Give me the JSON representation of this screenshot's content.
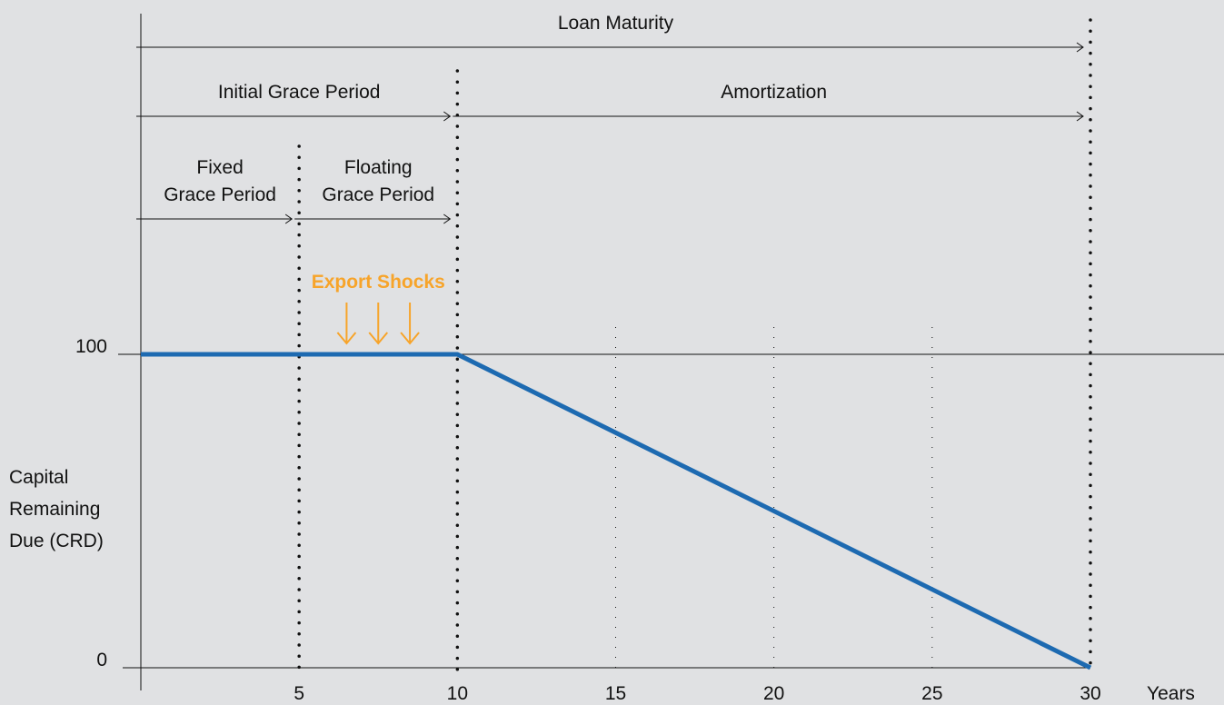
{
  "chart_data": {
    "type": "line",
    "x": [
      0,
      10,
      30
    ],
    "series": [
      {
        "name": "Capital Remaining Due",
        "color": "#1d6ab1",
        "values": [
          100,
          100,
          0
        ]
      }
    ],
    "xlim": [
      0,
      30
    ],
    "ylim": [
      0,
      100
    ],
    "xticks": [
      5,
      10,
      15,
      20,
      25,
      30
    ],
    "yticks": [
      0,
      100
    ],
    "xlabel": "Years",
    "ylabel": [
      "Capital",
      "Remaining",
      "Due (CRD)"
    ],
    "dividers": [
      5,
      10,
      30
    ],
    "spans": [
      {
        "start": 0,
        "end": 30,
        "label": [
          "Loan Maturity"
        ]
      },
      {
        "start": 0,
        "end": 10,
        "label": [
          "Initial Grace Period"
        ]
      },
      {
        "start": 10,
        "end": 30,
        "label": [
          "Amortization"
        ]
      },
      {
        "start": 0,
        "end": 5,
        "label": [
          "Fixed",
          "Grace Period"
        ]
      },
      {
        "start": 5,
        "end": 10,
        "label": [
          "Floating",
          "Grace Period"
        ]
      }
    ],
    "shocks": {
      "label": "Export Shocks",
      "x": [
        6.5,
        7.5,
        8.5
      ],
      "color": "#f7a42a"
    }
  }
}
